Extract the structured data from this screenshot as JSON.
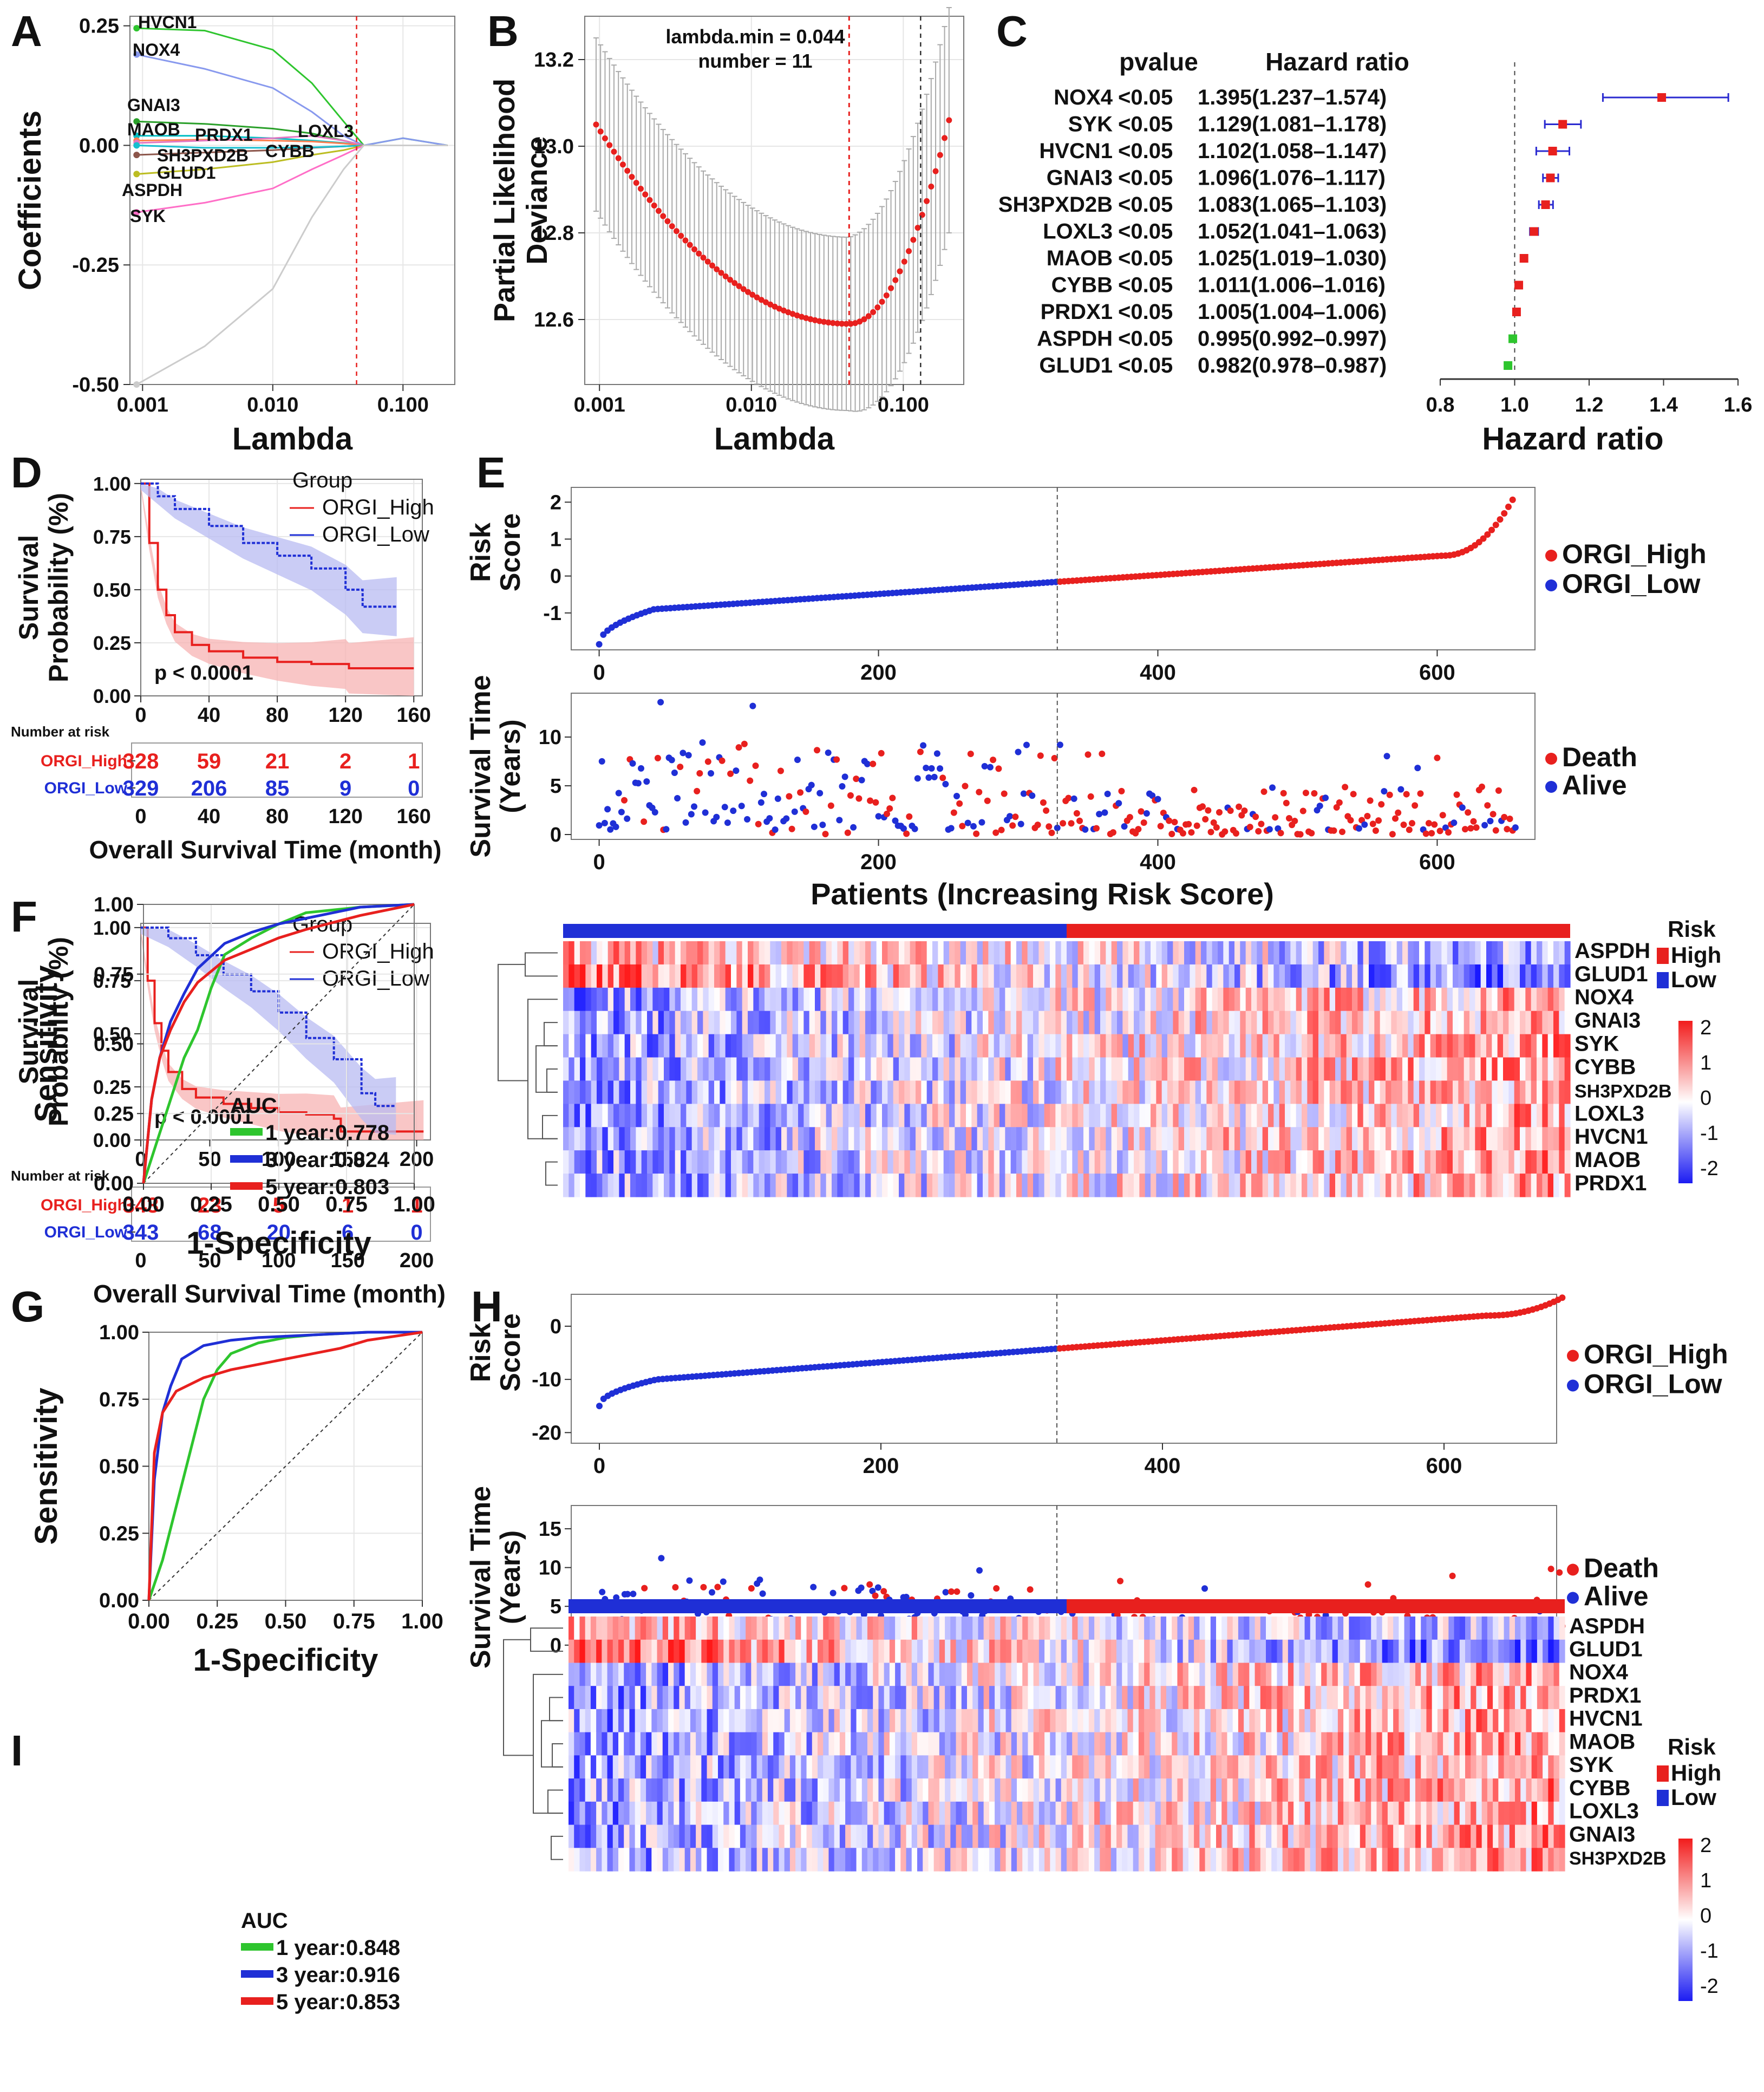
{
  "colors": {
    "red": "#e8201e",
    "blue": "#1f2fd6",
    "green": "#2ec52e",
    "grid": "#e6e6e6",
    "bandRed": "#f7b3b3",
    "bandBlue": "#b8bbf2"
  },
  "panel_letters": [
    "A",
    "B",
    "C",
    "D",
    "E",
    "F",
    "G",
    "H",
    "I"
  ],
  "chart_data": [
    {
      "id": "A",
      "type": "line",
      "title": "",
      "xlabel": "Lambda",
      "ylabel": "Coefficients",
      "xscale": "log",
      "xlim": [
        0.0008,
        0.25
      ],
      "ylim": [
        -0.5,
        0.27
      ],
      "xticks": [
        "0.001",
        "0.010",
        "0.100"
      ],
      "yticks": [
        "0.25",
        "0.00",
        "-0.25",
        "-0.50"
      ],
      "lambda_min": 0.044,
      "series": [
        {
          "name": "HVCN1",
          "color": "#2ec52e",
          "values": [
            0.245,
            0.24,
            0.2,
            0.13,
            0.05,
            0.0
          ]
        },
        {
          "name": "NOX4",
          "color": "#8899ee",
          "values": [
            0.19,
            0.16,
            0.12,
            0.07,
            0.02,
            0.0
          ]
        },
        {
          "name": "GNAI3",
          "color": "#2aa02a",
          "values": [
            0.05,
            0.045,
            0.035,
            0.025,
            0.01,
            0.0
          ]
        },
        {
          "name": "MAOB",
          "color": "#00bfc4",
          "values": [
            0.02,
            0.02,
            0.015,
            0.01,
            0.005,
            0.0
          ]
        },
        {
          "name": "PRDX1",
          "color": "#ff7f50",
          "values": [
            0.01,
            0.012,
            0.01,
            0.008,
            0.004,
            0.0
          ]
        },
        {
          "name": "LOXL3",
          "color": "#e377c2",
          "values": [
            0.005,
            0.01,
            0.015,
            0.02,
            0.01,
            0.0
          ]
        },
        {
          "name": "SH3PXD2B",
          "color": "#8c564b",
          "values": [
            -0.02,
            -0.015,
            -0.01,
            -0.005,
            -0.002,
            0.0
          ]
        },
        {
          "name": "CYBB",
          "color": "#17becf",
          "values": [
            0.0,
            -0.005,
            -0.005,
            -0.004,
            -0.002,
            0.0
          ]
        },
        {
          "name": "GLUD1",
          "color": "#bcbd22",
          "values": [
            -0.06,
            -0.05,
            -0.035,
            -0.02,
            -0.01,
            0.0
          ]
        },
        {
          "name": "ASPDH",
          "color": "#ff6ec7",
          "values": [
            -0.14,
            -0.12,
            -0.09,
            -0.05,
            -0.02,
            0.0
          ]
        },
        {
          "name": "SYK",
          "color": "#cccccc",
          "values": [
            -0.5,
            -0.42,
            -0.3,
            -0.15,
            -0.05,
            0.0
          ]
        }
      ]
    },
    {
      "id": "B",
      "type": "scatter",
      "title": "",
      "xlabel": "Lambda",
      "ylabel": "Partial Likelihood Deviance",
      "xscale": "log",
      "xlim": [
        0.0008,
        0.25
      ],
      "ylim": [
        12.45,
        13.3
      ],
      "xticks": [
        "0.001",
        "0.010",
        "0.100"
      ],
      "yticks": [
        "13.2",
        "13.0",
        "12.8",
        "12.6"
      ],
      "annotations": [
        "lambda.min = 0.044",
        "number = 11"
      ],
      "lambda_min": 0.044,
      "lambda_1se": 0.13,
      "curve": {
        "start": 13.05,
        "min": 12.59,
        "end": 13.06
      },
      "error_half_width": 0.2
    },
    {
      "id": "C",
      "type": "forest",
      "xlabel": "Hazard ratio",
      "xlim": [
        0.8,
        1.6
      ],
      "xticks": [
        "0.8",
        "1.0",
        "1.2",
        "1.4",
        "1.6"
      ],
      "headers": {
        "pvalue": "pvalue",
        "hr": "Hazard ratio"
      },
      "rows": [
        {
          "gene": "NOX4",
          "p": "<0.05",
          "hr_text": "1.395(1.237–1.574)",
          "hr": 1.395,
          "lo": 1.237,
          "hi": 1.574,
          "color": "#e8201e"
        },
        {
          "gene": "SYK",
          "p": "<0.05",
          "hr_text": "1.129(1.081–1.178)",
          "hr": 1.129,
          "lo": 1.081,
          "hi": 1.178,
          "color": "#e8201e"
        },
        {
          "gene": "HVCN1",
          "p": "<0.05",
          "hr_text": "1.102(1.058–1.147)",
          "hr": 1.102,
          "lo": 1.058,
          "hi": 1.147,
          "color": "#e8201e"
        },
        {
          "gene": "GNAI3",
          "p": "<0.05",
          "hr_text": "1.096(1.076–1.117)",
          "hr": 1.096,
          "lo": 1.076,
          "hi": 1.117,
          "color": "#e8201e"
        },
        {
          "gene": "SH3PXD2B",
          "p": "<0.05",
          "hr_text": "1.083(1.065–1.103)",
          "hr": 1.083,
          "lo": 1.065,
          "hi": 1.103,
          "color": "#e8201e"
        },
        {
          "gene": "LOXL3",
          "p": "<0.05",
          "hr_text": "1.052(1.041–1.063)",
          "hr": 1.052,
          "lo": 1.041,
          "hi": 1.063,
          "color": "#e8201e"
        },
        {
          "gene": "MAOB",
          "p": "<0.05",
          "hr_text": "1.025(1.019–1.030)",
          "hr": 1.025,
          "lo": 1.019,
          "hi": 1.03,
          "color": "#e8201e"
        },
        {
          "gene": "CYBB",
          "p": "<0.05",
          "hr_text": "1.011(1.006–1.016)",
          "hr": 1.011,
          "lo": 1.006,
          "hi": 1.016,
          "color": "#e8201e"
        },
        {
          "gene": "PRDX1",
          "p": "<0.05",
          "hr_text": "1.005(1.004–1.006)",
          "hr": 1.005,
          "lo": 1.004,
          "hi": 1.006,
          "color": "#e8201e"
        },
        {
          "gene": "ASPDH",
          "p": "<0.05",
          "hr_text": "0.995(0.992–0.997)",
          "hr": 0.995,
          "lo": 0.992,
          "hi": 0.997,
          "color": "#2ec52e"
        },
        {
          "gene": "GLUD1",
          "p": "<0.05",
          "hr_text": "0.982(0.978–0.987)",
          "hr": 0.982,
          "lo": 0.978,
          "hi": 0.987,
          "color": "#2ec52e"
        }
      ]
    },
    {
      "id": "D",
      "type": "line",
      "subtype": "kaplan-meier",
      "xlabel": "Overall Survival Time (month)",
      "ylabel": "Survival Probability (%)",
      "xlim": [
        0,
        165
      ],
      "ylim": [
        0,
        1.02
      ],
      "xticks": [
        "0",
        "40",
        "80",
        "120",
        "160"
      ],
      "yticks": [
        "1.00",
        "0.75",
        "0.50",
        "0.25",
        "0.00"
      ],
      "legend_title": "Group",
      "pvalue": "p < 0.0001",
      "series": [
        {
          "name": "ORGI_High",
          "color": "#e8201e",
          "x": [
            0,
            5,
            10,
            15,
            20,
            30,
            40,
            60,
            80,
            100,
            120,
            122,
            160
          ],
          "y": [
            1,
            0.72,
            0.5,
            0.38,
            0.3,
            0.24,
            0.21,
            0.18,
            0.16,
            0.15,
            0.15,
            0.13,
            0.13
          ]
        },
        {
          "name": "ORGI_Low",
          "color": "#1f2fd6",
          "x": [
            0,
            10,
            20,
            40,
            60,
            80,
            100,
            120,
            130,
            150
          ],
          "y": [
            1,
            0.94,
            0.88,
            0.8,
            0.72,
            0.66,
            0.6,
            0.5,
            0.42,
            0.42
          ]
        }
      ],
      "risk_table": {
        "title": "Number at risk",
        "times": [
          "0",
          "40",
          "80",
          "120",
          "160"
        ],
        "rows": [
          {
            "name": "ORGI_High",
            "values": [
              "328",
              "59",
              "21",
              "2",
              "1"
            ]
          },
          {
            "name": "ORGI_Low",
            "values": [
              "329",
              "206",
              "85",
              "9",
              "0"
            ]
          }
        ]
      }
    },
    {
      "id": "E1",
      "type": "scatter",
      "ylabel": "Risk Score",
      "xlim": [
        -20,
        670
      ],
      "ylim": [
        -2.0,
        2.4
      ],
      "xticks": [
        "0",
        "200",
        "400",
        "600"
      ],
      "yticks": [
        "2",
        "1",
        "0",
        "-1"
      ],
      "cutoff": 328,
      "n": 657,
      "legend": [
        "ORGI_High",
        "ORGI_Low"
      ]
    },
    {
      "id": "E2",
      "type": "scatter",
      "xlabel": "Patients (Increasing Risk Score)",
      "ylabel": "Survival Time (Years)",
      "xlim": [
        -20,
        670
      ],
      "ylim": [
        -0.5,
        14.5
      ],
      "xticks": [
        "0",
        "200",
        "400",
        "600"
      ],
      "yticks": [
        "10",
        "5",
        "0"
      ],
      "cutoff": 328,
      "legend": [
        "Death",
        "Alive"
      ]
    },
    {
      "id": "F",
      "type": "line",
      "subtype": "roc",
      "xlabel": "1-Specificity",
      "ylabel": "Sensitivity",
      "xticks": [
        "0.00",
        "0.25",
        "0.50",
        "0.75",
        "1.00"
      ],
      "yticks": [
        "1.00",
        "0.75",
        "0.50",
        "0.25",
        "0.00"
      ],
      "legend_title": "AUC",
      "series": [
        {
          "name": "1 year",
          "auc": "0.778",
          "label": "1 year:0.778",
          "color": "#2ec52e",
          "x": [
            0,
            0.05,
            0.1,
            0.15,
            0.2,
            0.25,
            0.3,
            0.4,
            0.5,
            0.6,
            0.8,
            1
          ],
          "y": [
            0,
            0.15,
            0.3,
            0.45,
            0.55,
            0.7,
            0.82,
            0.88,
            0.93,
            0.97,
            0.99,
            1
          ]
        },
        {
          "name": "3 year",
          "auc": "0.824",
          "label": "3 year:0.824",
          "color": "#1f2fd6",
          "x": [
            0,
            0.03,
            0.06,
            0.1,
            0.15,
            0.2,
            0.3,
            0.4,
            0.5,
            0.6,
            0.8,
            1
          ],
          "y": [
            0,
            0.3,
            0.45,
            0.58,
            0.68,
            0.77,
            0.86,
            0.9,
            0.93,
            0.95,
            0.99,
            1
          ]
        },
        {
          "name": "5 year",
          "auc": "0.803",
          "label": "5 year:0.803",
          "color": "#e8201e",
          "x": [
            0,
            0.03,
            0.06,
            0.1,
            0.15,
            0.2,
            0.3,
            0.4,
            0.5,
            0.6,
            0.8,
            1
          ],
          "y": [
            0,
            0.3,
            0.45,
            0.55,
            0.65,
            0.72,
            0.8,
            0.84,
            0.88,
            0.91,
            0.96,
            1
          ]
        }
      ]
    },
    {
      "id": "F-heatmap",
      "type": "heatmap",
      "genes": [
        "ASPDH",
        "GLUD1",
        "NOX4",
        "GNAI3",
        "SYK",
        "CYBB",
        "SH3PXD2B",
        "LOXL3",
        "HVCN1",
        "MAOB",
        "PRDX1"
      ],
      "annotation": "Risk",
      "annotation_levels": [
        "High",
        "Low"
      ],
      "scale": [
        "2",
        "1",
        "0",
        "-1",
        "-2"
      ],
      "low_fraction": 0.5
    },
    {
      "id": "G",
      "type": "line",
      "subtype": "kaplan-meier",
      "xlabel": "Overall Survival Time (month)",
      "ylabel": "Survival Probability (%)",
      "xlim": [
        0,
        210
      ],
      "ylim": [
        0,
        1.02
      ],
      "xticks": [
        "0",
        "50",
        "100",
        "150",
        "200"
      ],
      "yticks": [
        "1.00",
        "0.75",
        "0.50",
        "0.25",
        "0.00"
      ],
      "legend_title": "Group",
      "pvalue": "p < 0.0001",
      "series": [
        {
          "name": "ORGI_High",
          "color": "#e8201e",
          "x": [
            0,
            5,
            10,
            15,
            20,
            30,
            40,
            60,
            80,
            100,
            120,
            140,
            145,
            205
          ],
          "y": [
            1,
            0.75,
            0.55,
            0.42,
            0.32,
            0.24,
            0.2,
            0.17,
            0.15,
            0.13,
            0.12,
            0.1,
            0.04,
            0.04
          ]
        },
        {
          "name": "ORGI_Low",
          "color": "#1f2fd6",
          "x": [
            0,
            20,
            40,
            60,
            80,
            100,
            120,
            140,
            160,
            170,
            185
          ],
          "y": [
            1,
            0.95,
            0.87,
            0.78,
            0.7,
            0.6,
            0.48,
            0.38,
            0.22,
            0.16,
            0.16
          ]
        }
      ],
      "risk_table": {
        "title": "Number at risk",
        "times": [
          "0",
          "50",
          "100",
          "150",
          "200"
        ],
        "rows": [
          {
            "name": "ORGI_High",
            "values": [
              "343",
              "23",
              "5",
              "1",
              "1"
            ]
          },
          {
            "name": "ORGI_Low",
            "values": [
              "343",
              "68",
              "20",
              "6",
              "0"
            ]
          }
        ]
      }
    },
    {
      "id": "H1",
      "type": "scatter",
      "ylabel": "Risk Score",
      "xlim": [
        -20,
        680
      ],
      "ylim": [
        -22,
        6
      ],
      "xticks": [
        "0",
        "200",
        "400",
        "600"
      ],
      "yticks": [
        "0",
        "-10",
        "-20"
      ],
      "cutoff": 325,
      "n": 686,
      "legend": [
        "ORGI_High",
        "ORGI_Low"
      ]
    },
    {
      "id": "H2",
      "type": "scatter",
      "xlabel": "Patients (Increasing Risk Score)",
      "ylabel": "Survival Time (Years)",
      "xlim": [
        -20,
        680
      ],
      "ylim": [
        -0.5,
        18
      ],
      "xticks": [
        "0",
        "200",
        "400",
        "600"
      ],
      "yticks": [
        "15",
        "10",
        "5",
        "0"
      ],
      "cutoff": 325,
      "legend": [
        "Death",
        "Alive"
      ]
    },
    {
      "id": "I",
      "type": "line",
      "subtype": "roc",
      "xlabel": "1-Specificity",
      "ylabel": "Sensitivity",
      "xticks": [
        "0.00",
        "0.25",
        "0.50",
        "0.75",
        "1.00"
      ],
      "yticks": [
        "1.00",
        "0.75",
        "0.50",
        "0.25",
        "0.00"
      ],
      "legend_title": "AUC",
      "series": [
        {
          "name": "1 year",
          "auc": "0.848",
          "label": "1 year:0.848",
          "color": "#2ec52e",
          "x": [
            0,
            0.05,
            0.1,
            0.15,
            0.2,
            0.25,
            0.3,
            0.4,
            0.5,
            0.6,
            0.8,
            1
          ],
          "y": [
            0,
            0.15,
            0.35,
            0.55,
            0.75,
            0.86,
            0.92,
            0.96,
            0.98,
            0.99,
            1,
            1
          ]
        },
        {
          "name": "3 year",
          "auc": "0.916",
          "label": "3 year:0.916",
          "color": "#1f2fd6",
          "x": [
            0,
            0.02,
            0.05,
            0.08,
            0.12,
            0.2,
            0.3,
            0.4,
            0.6,
            0.8,
            1
          ],
          "y": [
            0,
            0.45,
            0.7,
            0.8,
            0.9,
            0.95,
            0.97,
            0.98,
            0.99,
            1,
            1
          ]
        },
        {
          "name": "5 year",
          "auc": "0.853",
          "label": "5 year:0.853",
          "color": "#e8201e",
          "x": [
            0,
            0.02,
            0.05,
            0.1,
            0.2,
            0.3,
            0.4,
            0.5,
            0.6,
            0.7,
            0.8,
            1
          ],
          "y": [
            0,
            0.55,
            0.7,
            0.78,
            0.83,
            0.86,
            0.88,
            0.9,
            0.92,
            0.94,
            0.97,
            1
          ]
        }
      ]
    },
    {
      "id": "I-heatmap",
      "type": "heatmap",
      "genes": [
        "ASPDH",
        "GLUD1",
        "NOX4",
        "PRDX1",
        "HVCN1",
        "MAOB",
        "SYK",
        "CYBB",
        "LOXL3",
        "GNAI3",
        "SH3PXD2B"
      ],
      "annotation": "Risk",
      "annotation_levels": [
        "High",
        "Low"
      ],
      "scale": [
        "2",
        "1",
        "0",
        "-1",
        "-2"
      ],
      "low_fraction": 0.5
    }
  ]
}
